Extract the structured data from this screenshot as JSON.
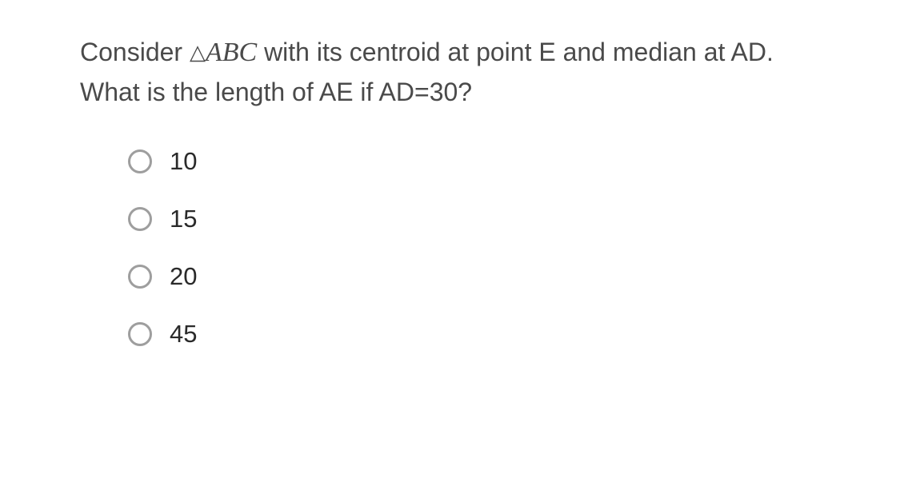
{
  "question": {
    "prefix": "Consider ",
    "triangle_symbol": "△",
    "triangle_name": "ABC",
    "suffix": " with its centroid at point E and median at AD. What is the length of AE if AD=30?"
  },
  "options": [
    {
      "label": "10"
    },
    {
      "label": "15"
    },
    {
      "label": "20"
    },
    {
      "label": "45"
    }
  ],
  "style": {
    "background_color": "#ffffff",
    "question_text_color": "#4a4a4a",
    "option_text_color": "#2a2a2a",
    "radio_border_color": "#9e9e9e",
    "question_fontsize": 32,
    "option_fontsize": 31,
    "radio_size": 30,
    "radio_border_width": 3
  }
}
